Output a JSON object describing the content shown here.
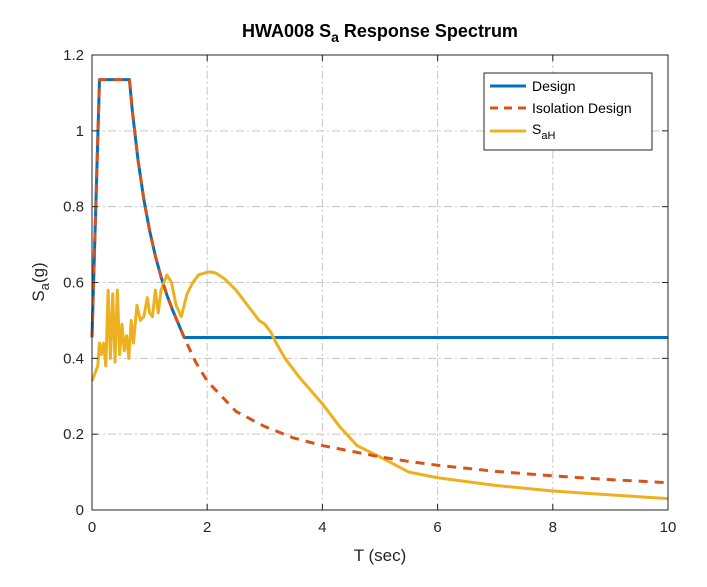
{
  "chart_data": {
    "type": "line",
    "title": {
      "prefix": "HWA008 S",
      "sub": "a",
      "suffix": " Response Spectrum"
    },
    "xlabel": "T (sec)",
    "ylabel": {
      "main": "S",
      "sub": "a",
      "suffix": "(g)"
    },
    "xlim": [
      0,
      10
    ],
    "ylim": [
      0,
      1.2
    ],
    "xticks": [
      0,
      2,
      4,
      6,
      8,
      10
    ],
    "xtick_labels": [
      "0",
      "2",
      "4",
      "6",
      "8",
      "10"
    ],
    "yticks": [
      0,
      0.2,
      0.4,
      0.6,
      0.8,
      1.0,
      1.2
    ],
    "ytick_labels": [
      "0",
      "0.2",
      "0.4",
      "0.6",
      "0.8",
      "1",
      "1.2"
    ],
    "grid": true,
    "legend_position": "top-right",
    "series": [
      {
        "name": "Design",
        "color": "#0072BD",
        "style": "solid",
        "x": [
          0,
          0.13,
          0.65,
          0.7,
          0.8,
          0.9,
          1.0,
          1.1,
          1.2,
          1.3,
          1.4,
          1.5,
          1.6,
          2,
          3,
          4,
          5,
          6,
          7,
          8,
          9,
          10
        ],
        "y": [
          0.455,
          1.135,
          1.135,
          1.053,
          0.922,
          0.819,
          0.737,
          0.67,
          0.614,
          0.567,
          0.527,
          0.491,
          0.455,
          0.455,
          0.455,
          0.455,
          0.455,
          0.455,
          0.455,
          0.455,
          0.455,
          0.455
        ]
      },
      {
        "name": "Isolation Design",
        "color": "#D95319",
        "style": "dashed",
        "x": [
          0,
          0.13,
          0.65,
          0.7,
          0.8,
          0.9,
          1.0,
          1.1,
          1.2,
          1.3,
          1.4,
          1.5,
          1.6,
          1.8,
          2.0,
          2.5,
          3.0,
          3.5,
          4.0,
          4.5,
          5.0,
          5.5,
          6.0,
          6.5,
          7.0,
          7.5,
          8.0,
          8.5,
          9.0,
          9.5,
          10.0
        ],
        "y": [
          0.455,
          1.135,
          1.135,
          1.053,
          0.922,
          0.819,
          0.737,
          0.67,
          0.614,
          0.567,
          0.527,
          0.491,
          0.455,
          0.39,
          0.34,
          0.26,
          0.22,
          0.19,
          0.17,
          0.155,
          0.14,
          0.128,
          0.118,
          0.11,
          0.102,
          0.096,
          0.09,
          0.085,
          0.08,
          0.076,
          0.072
        ]
      },
      {
        "name": "S",
        "name_sub": "aH",
        "color": "#EDB120",
        "style": "solid",
        "x": [
          0,
          0.05,
          0.1,
          0.13,
          0.16,
          0.2,
          0.24,
          0.28,
          0.32,
          0.36,
          0.4,
          0.44,
          0.48,
          0.52,
          0.56,
          0.6,
          0.64,
          0.68,
          0.72,
          0.78,
          0.84,
          0.9,
          0.96,
          1.0,
          1.05,
          1.1,
          1.15,
          1.2,
          1.25,
          1.3,
          1.38,
          1.46,
          1.55,
          1.65,
          1.75,
          1.85,
          1.95,
          2.05,
          2.15,
          2.3,
          2.5,
          2.7,
          2.9,
          3.0,
          3.1,
          3.2,
          3.35,
          3.6,
          4.0,
          4.3,
          4.6,
          5.0,
          5.5,
          6.0,
          7.0,
          8.0,
          9.0,
          10.0
        ],
        "y": [
          0.34,
          0.36,
          0.38,
          0.44,
          0.41,
          0.44,
          0.38,
          0.58,
          0.4,
          0.57,
          0.39,
          0.58,
          0.41,
          0.49,
          0.42,
          0.46,
          0.4,
          0.5,
          0.44,
          0.54,
          0.5,
          0.51,
          0.56,
          0.52,
          0.51,
          0.58,
          0.52,
          0.58,
          0.6,
          0.62,
          0.6,
          0.54,
          0.51,
          0.57,
          0.6,
          0.62,
          0.625,
          0.628,
          0.625,
          0.61,
          0.58,
          0.54,
          0.5,
          0.49,
          0.47,
          0.44,
          0.4,
          0.35,
          0.28,
          0.22,
          0.17,
          0.14,
          0.1,
          0.085,
          0.065,
          0.05,
          0.04,
          0.03
        ]
      }
    ]
  }
}
